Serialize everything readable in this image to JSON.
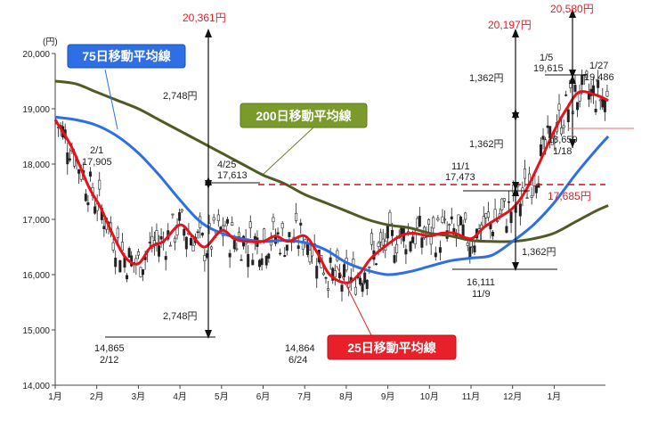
{
  "chart_data": {
    "type": "line",
    "title": "",
    "ylabel": "(円)",
    "xlabel": "",
    "ylim": [
      14000,
      20000
    ],
    "ytick_labels": [
      "20,000",
      "19,000",
      "18,000",
      "17,000",
      "16,000",
      "15,000",
      "14,000"
    ],
    "ytick_values": [
      20000,
      19000,
      18000,
      17000,
      16000,
      15000,
      14000
    ],
    "x_labels": [
      "1月",
      "2月",
      "3月",
      "4月",
      "5月",
      "6月",
      "7月",
      "8月",
      "9月",
      "10月",
      "11月",
      "12月",
      "1月"
    ],
    "grid": false,
    "series": [
      {
        "name": "75日移動平均線",
        "color": "#2f6fe6",
        "x": [
          0,
          0.5,
          1,
          1.5,
          2,
          2.5,
          3,
          3.5,
          4,
          4.5,
          5,
          5.5,
          6,
          6.5,
          7,
          7.5,
          8,
          8.5,
          9,
          9.5,
          10,
          10.5,
          11,
          11.5,
          12,
          12.5,
          13,
          13.3
        ],
        "values": [
          18850,
          18800,
          18700,
          18500,
          18200,
          17800,
          17350,
          16950,
          16750,
          16650,
          16600,
          16620,
          16580,
          16450,
          16220,
          16080,
          16000,
          16050,
          16150,
          16250,
          16300,
          16350,
          16600,
          16900,
          17300,
          17800,
          18250,
          18500
        ]
      },
      {
        "name": "200日移動平均線",
        "color": "#4f5a25",
        "x": [
          0,
          0.5,
          1,
          1.5,
          2,
          2.5,
          3,
          3.5,
          4,
          4.5,
          5,
          5.5,
          6,
          6.5,
          7,
          7.5,
          8,
          8.5,
          9,
          9.5,
          10,
          10.5,
          11,
          11.5,
          12,
          12.5,
          13,
          13.3
        ],
        "values": [
          19500,
          19450,
          19300,
          19150,
          19000,
          18800,
          18600,
          18400,
          18200,
          18000,
          17800,
          17650,
          17450,
          17300,
          17150,
          17000,
          16900,
          16850,
          16750,
          16700,
          16620,
          16600,
          16600,
          16650,
          16750,
          16950,
          17150,
          17250
        ]
      },
      {
        "name": "25日移動平均線",
        "color": "#e8101a",
        "x": [
          0,
          0.4,
          0.8,
          1.1,
          1.4,
          1.7,
          2,
          2.3,
          2.6,
          3,
          3.3,
          3.6,
          4,
          4.3,
          4.6,
          5,
          5.3,
          5.6,
          6,
          6.3,
          6.6,
          7,
          7.3,
          7.6,
          8,
          8.3,
          8.6,
          9,
          9.3,
          9.6,
          10,
          10.3,
          10.6,
          11,
          11.3,
          11.6,
          12,
          12.3,
          12.6,
          13,
          13.3
        ],
        "values": [
          18800,
          18300,
          17600,
          17200,
          16700,
          16300,
          16200,
          16500,
          16600,
          16900,
          16700,
          16500,
          16800,
          16650,
          16600,
          16600,
          16700,
          16600,
          16700,
          16400,
          16000,
          15850,
          16000,
          16300,
          16550,
          16700,
          16750,
          16700,
          16750,
          16750,
          16650,
          16850,
          17000,
          17200,
          17500,
          17950,
          18600,
          19000,
          19300,
          19250,
          19150
        ]
      }
    ],
    "annotations": [
      {
        "label": "20,361円",
        "value": 20361
      },
      {
        "label": "2,748円",
        "value": 2748
      },
      {
        "label": "2,748円",
        "value": 2748
      },
      {
        "label": "2/1",
        "date": "2/1"
      },
      {
        "label": "17,905",
        "value": 17905
      },
      {
        "label": "4/25",
        "date": "4/25"
      },
      {
        "label": "17,613",
        "value": 17613
      },
      {
        "label": "14,865",
        "value": 14865
      },
      {
        "label": "2/12",
        "date": "2/12"
      },
      {
        "label": "14,864",
        "value": 14864
      },
      {
        "label": "6/24",
        "date": "6/24"
      },
      {
        "label": "11/1",
        "date": "11/1"
      },
      {
        "label": "17,473",
        "value": 17473
      },
      {
        "label": "16,111",
        "value": 16111
      },
      {
        "label": "11/9",
        "date": "11/9"
      },
      {
        "label": "20,197円",
        "value": 20197
      },
      {
        "label": "1,362円",
        "value": 1362
      },
      {
        "label": "1,362円",
        "value": 1362
      },
      {
        "label": "1,362円",
        "value": 1362
      },
      {
        "label": "17,685円",
        "value": 17685
      },
      {
        "label": "20,580円",
        "value": 20580
      },
      {
        "label": "1/5",
        "date": "1/5"
      },
      {
        "label": "19,615",
        "value": 19615
      },
      {
        "label": "1/27",
        "date": "1/27"
      },
      {
        "label": "19,486",
        "value": 19486
      },
      {
        "label": "18,650",
        "value": 18650
      },
      {
        "label": "1/18",
        "date": "1/18"
      }
    ]
  },
  "legends": {
    "ma75": "75日移動平均線",
    "ma200": "200日移動平均線",
    "ma25": "25日移動平均線"
  },
  "colors": {
    "ma75_box": "#2f6fe6",
    "ma200_box": "#7a9a2c",
    "ma25_box": "#e8202a",
    "red_annotation": "#e0202a",
    "dashed_line": "#c0141c"
  }
}
